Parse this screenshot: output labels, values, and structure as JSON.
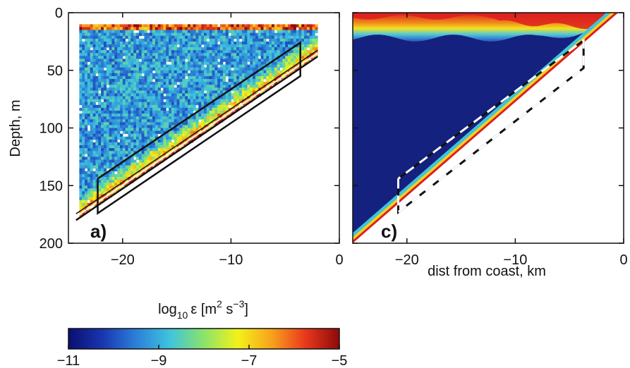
{
  "chart_data": [
    {
      "type": "heatmap",
      "panel_label": "a)",
      "ylabel": "Depth, m",
      "xlabel": "",
      "xlim": [
        -25,
        0
      ],
      "ylim": [
        200,
        0
      ],
      "x_ticks": [
        "−20",
        "−10",
        "0"
      ],
      "x_tick_values": [
        -20,
        -10,
        0
      ],
      "y_ticks": [
        "0",
        "50",
        "100",
        "150",
        "200"
      ],
      "y_tick_values": [
        0,
        50,
        100,
        150,
        200
      ],
      "bottom_profile": {
        "x": [
          -24.3,
          -2
        ],
        "y": [
          180,
          38
        ]
      },
      "outlined_region": {
        "x": [
          -22.3,
          -22.3,
          -3.6,
          -3.6,
          -22.3
        ],
        "y": [
          144,
          174,
          55,
          26,
          144
        ]
      },
      "data_region": {
        "x_range": [
          -24,
          -2
        ],
        "top_depth": 10
      },
      "colors": {
        "background": "#44aacc",
        "bottom_layer": "#ee3322",
        "outline": "#111111"
      }
    },
    {
      "type": "heatmap",
      "panel_label": "c)",
      "ylabel": "",
      "xlabel": "dist from coast, km",
      "xlim": [
        -25,
        0
      ],
      "ylim": [
        200,
        0
      ],
      "x_ticks": [
        "−20",
        "−10",
        "0"
      ],
      "x_tick_values": [
        -20,
        -10,
        0
      ],
      "bottom_profile": {
        "x": [
          -25,
          -0.5
        ],
        "y": [
          200,
          0
        ]
      },
      "outlined_region": {
        "x": [
          -20.8,
          -20.8,
          -3.7,
          -3.7,
          -20.8
        ],
        "y": [
          144,
          173,
          48,
          24,
          144
        ]
      },
      "surface_layer_depth": 22,
      "colors": {
        "interior": "#15217f",
        "surface": "#dd1f1f",
        "outline": "#111111",
        "dash": "#ffffff"
      }
    }
  ],
  "colorbar": {
    "label_base": "log",
    "label_sub": "10",
    "label_symbol": "ε [m",
    "label_exp1": "2",
    "label_mid": " s",
    "label_exp2": "−3",
    "label_end": "]",
    "ticks": [
      "−11",
      "−9",
      "−7",
      "−5"
    ],
    "tick_values": [
      -11,
      -9,
      -7,
      -5
    ],
    "range": [
      -11,
      -5
    ],
    "colors": [
      "#0a0f6e",
      "#1a35b0",
      "#2c7fd8",
      "#3fc4dc",
      "#8be36a",
      "#f2f21a",
      "#f7a21d",
      "#e8381c",
      "#8c0a0a"
    ]
  }
}
